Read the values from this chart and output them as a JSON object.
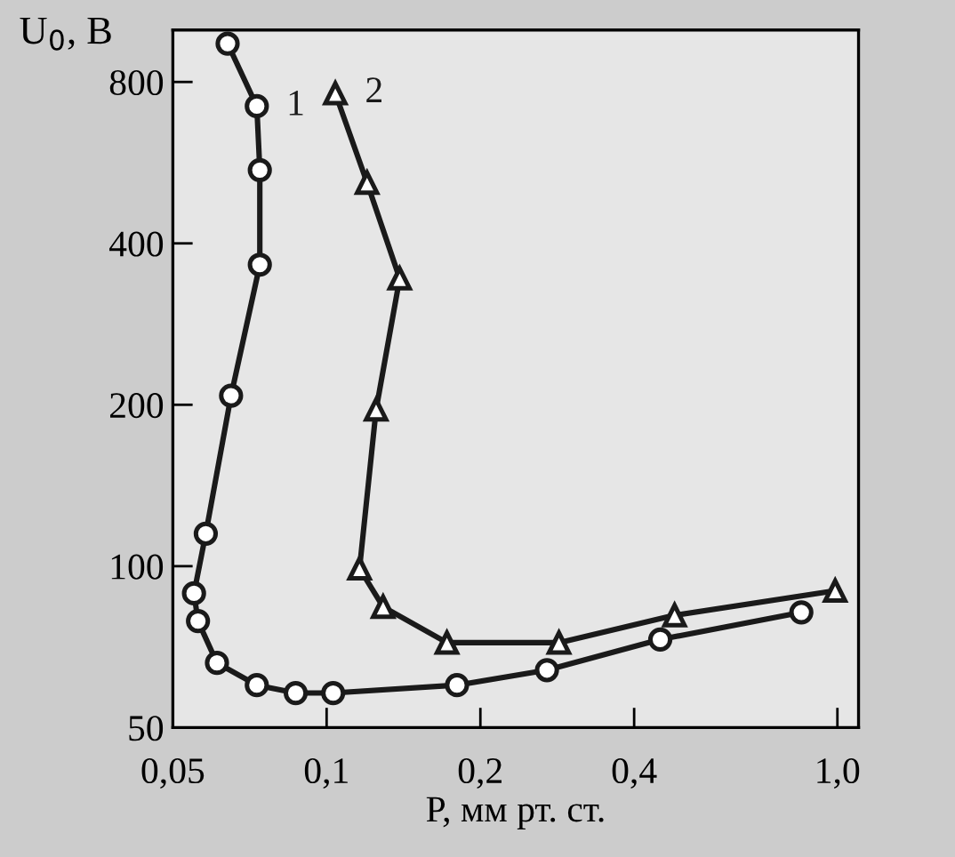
{
  "chart_data": {
    "type": "line",
    "xlabel": "P, мм рт. ст.",
    "ylabel": "U$_{0}$, В",
    "log": "xy",
    "grid": false,
    "legend": false,
    "line_style": "solid",
    "xlim": [
      0.05,
      1.1
    ],
    "ylim": [
      50,
      1000
    ],
    "xticks": [
      {
        "value": 0.05,
        "label": "0,05"
      },
      {
        "value": 0.1,
        "label": "0,1"
      },
      {
        "value": 0.2,
        "label": "0,2"
      },
      {
        "value": 0.4,
        "label": "0,4"
      },
      {
        "value": 1.0,
        "label": "1,0"
      }
    ],
    "yticks": [
      50,
      100,
      200,
      400,
      800
    ],
    "series": [
      {
        "name": "1",
        "color": "#1a1a1a",
        "marker": "circle",
        "x": [
          0.064,
          0.073,
          0.074,
          0.074,
          0.065,
          0.058,
          0.055,
          0.056,
          0.061,
          0.073,
          0.087,
          0.103,
          0.18,
          0.27,
          0.45,
          0.85
        ],
        "values": [
          943,
          721,
          548,
          365,
          208,
          115,
          89,
          79,
          66,
          60,
          58,
          58,
          60,
          64,
          73,
          82
        ]
      },
      {
        "name": "2",
        "color": "#1a1a1a",
        "marker": "triangle",
        "x": [
          0.104,
          0.12,
          0.139,
          0.125,
          0.116,
          0.129,
          0.172,
          0.285,
          0.48,
          0.99
        ],
        "values": [
          762,
          519,
          344,
          196,
          99,
          84,
          72,
          72,
          81,
          90
        ]
      }
    ]
  }
}
